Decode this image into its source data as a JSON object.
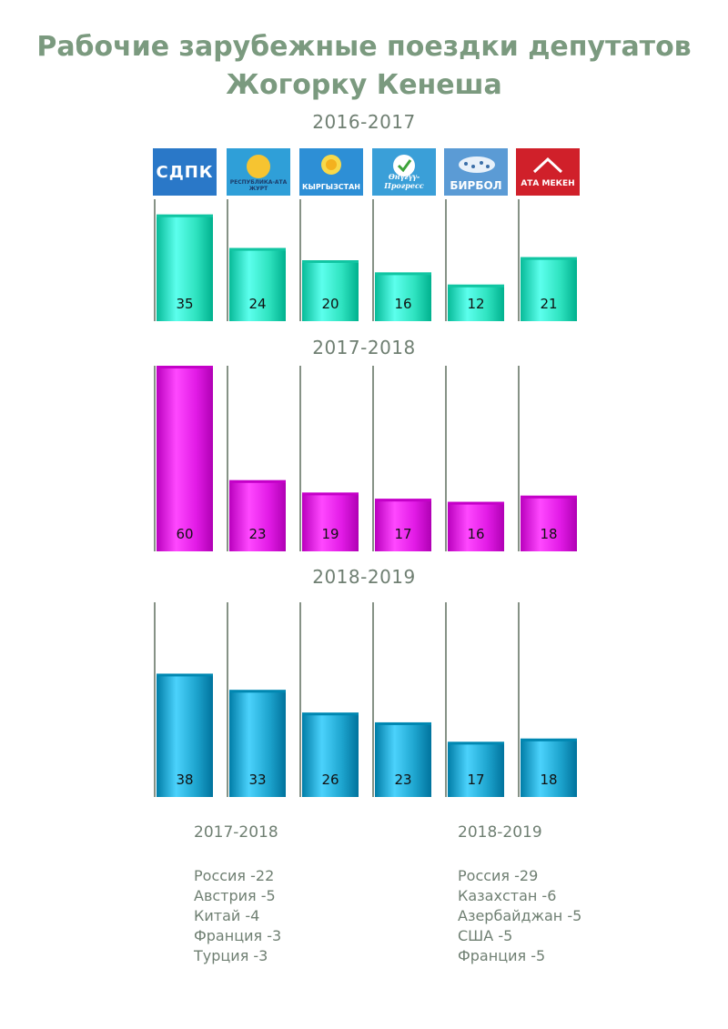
{
  "title": {
    "line1": "Рабочие зарубежные поездки депутатов",
    "line2": "Жогорку Кенеша"
  },
  "logos": [
    {
      "name": "sdpk",
      "text": "СДПК",
      "bg": "#2a78c8"
    },
    {
      "name": "respublika",
      "text": "РЕСПУБЛИКА-АТА ЖУРТ",
      "bg": "#2f9fd8"
    },
    {
      "name": "kyrgyzstan",
      "text": "КЫРГЫЗСТАН",
      "bg": "#2d8fd6"
    },
    {
      "name": "onuguu",
      "text": "Өнүгүү-Прогресс",
      "bg": "#3a9fd8"
    },
    {
      "name": "birbol",
      "text": "БИРБОЛ",
      "bg": "#5b9bd5"
    },
    {
      "name": "ata-meken",
      "text": "АТА МЕКЕН",
      "bg": "#d0202a"
    }
  ],
  "chart_data": [
    {
      "type": "bar",
      "title": "2016-2017",
      "categories": [
        "СДПК",
        "РЕСПУБЛИКА-АТА ЖУРТ",
        "КЫРГЫЗСТАН",
        "Өнүгүү-Прогресс",
        "БИРБОЛ",
        "АТА МЕКЕН"
      ],
      "values": [
        35,
        24,
        20,
        16,
        12,
        21
      ],
      "color": "#2fe3c0",
      "ylim": [
        0,
        40
      ]
    },
    {
      "type": "bar",
      "title": "2017-2018",
      "categories": [
        "СДПК",
        "РЕСПУБЛИКА-АТА ЖУРТ",
        "КЫРГЫЗСТАН",
        "Өнүгүү-Прогресс",
        "БИРБОЛ",
        "АТА МЕКЕН"
      ],
      "values": [
        60,
        23,
        19,
        17,
        16,
        18
      ],
      "color": "#e21be6",
      "ylim": [
        0,
        60
      ]
    },
    {
      "type": "bar",
      "title": "2018-2019",
      "categories": [
        "СДПК",
        "РЕСПУБЛИКА-АТА ЖУРТ",
        "КЫРГЫЗСТАН",
        "Өнүгүү-Прогресс",
        "БИРБОЛ",
        "АТА МЕКЕН"
      ],
      "values": [
        38,
        33,
        26,
        23,
        17,
        18
      ],
      "color": "#1ea5cf",
      "ylim": [
        0,
        60
      ]
    }
  ],
  "lists": [
    {
      "period": "2017-2018",
      "items": [
        "Россия -22",
        "Австрия -5",
        "Китай -4",
        "Франция -3",
        "Турция -3"
      ]
    },
    {
      "period": "2018-2019",
      "items": [
        "Россия -29",
        "Казахстан -6",
        "Азербайджан -5",
        "США -5",
        "Франция -5"
      ]
    }
  ]
}
